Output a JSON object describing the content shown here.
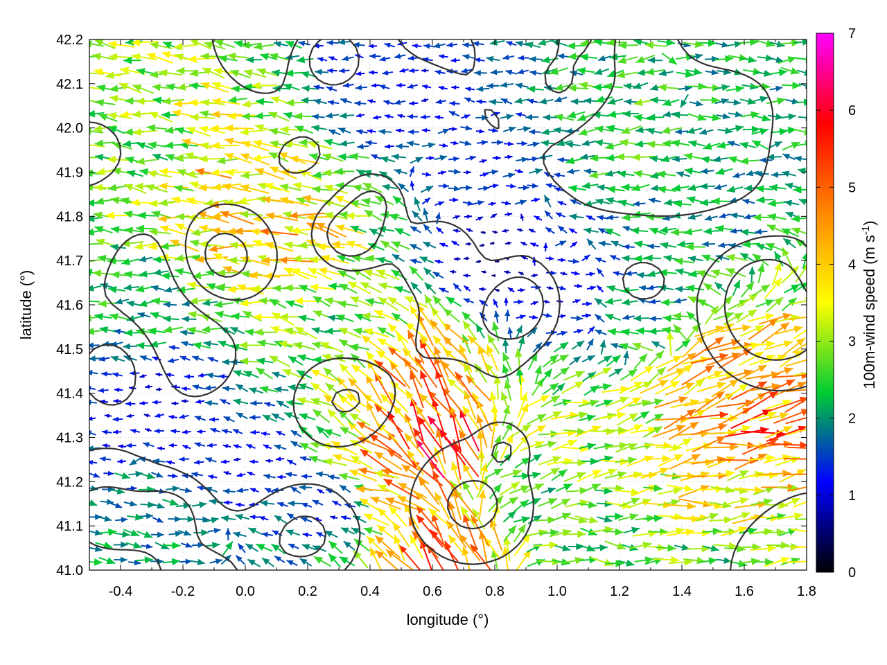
{
  "chart_data": {
    "type": "vector-field",
    "xlabel": "longitude (°)",
    "ylabel": "latitude (°)",
    "xlim": [
      -0.5,
      1.8
    ],
    "ylim": [
      41.0,
      42.2
    ],
    "x_ticks": [
      "-0.4",
      "-0.2",
      "0.0",
      "0.2",
      "0.4",
      "0.6",
      "0.8",
      "1.0",
      "1.2",
      "1.4",
      "1.6",
      "1.8"
    ],
    "y_ticks": [
      "41.0",
      "41.1",
      "41.2",
      "41.3",
      "41.4",
      "41.5",
      "41.6",
      "41.7",
      "41.8",
      "41.9",
      "42.0",
      "42.1",
      "42.2"
    ],
    "grid": true,
    "colorbar": {
      "label_main": "100m-wind speed (m s",
      "label_sup": "-1",
      "label_end": ")",
      "range": [
        0,
        7
      ],
      "ticks": [
        "0",
        "1",
        "2",
        "3",
        "4",
        "5",
        "6",
        "7"
      ],
      "stops": [
        "#000000",
        "#0000ff",
        "#00cc33",
        "#ffff00",
        "#ff8800",
        "#ff0000",
        "#ff00ff"
      ]
    },
    "contour_color": "#333333",
    "wind_regions": [
      {
        "lon": -0.3,
        "lat": 41.9,
        "u": -2.8,
        "v": 0.3,
        "speed": 2.8
      },
      {
        "lon": -0.1,
        "lat": 41.85,
        "u": -4.0,
        "v": 0.5,
        "speed": 4.0
      },
      {
        "lon": 0.1,
        "lat": 41.75,
        "u": -4.0,
        "v": 0.5,
        "speed": 4.0
      },
      {
        "lon": -0.35,
        "lat": 41.6,
        "u": -2.2,
        "v": 0.0,
        "speed": 2.2
      },
      {
        "lon": -0.3,
        "lat": 41.38,
        "u": -1.0,
        "v": 0.0,
        "speed": 1.0
      },
      {
        "lon": 0.0,
        "lat": 41.25,
        "u": -1.2,
        "v": 0.1,
        "speed": 1.2
      },
      {
        "lon": -0.3,
        "lat": 41.1,
        "u": 1.8,
        "v": -0.3,
        "speed": 1.9
      },
      {
        "lon": 0.3,
        "lat": 41.15,
        "u": -1.0,
        "v": 0.2,
        "speed": 1.0
      },
      {
        "lon": 0.3,
        "lat": 41.55,
        "u": -2.5,
        "v": 0.6,
        "speed": 2.6
      },
      {
        "lon": 0.55,
        "lat": 41.45,
        "u": -2.5,
        "v": 3.5,
        "speed": 4.6
      },
      {
        "lon": 0.6,
        "lat": 41.3,
        "u": -1.5,
        "v": 3.5,
        "speed": 5.5
      },
      {
        "lon": 0.6,
        "lat": 41.05,
        "u": -2.0,
        "v": 3.0,
        "speed": 4.8
      },
      {
        "lon": 0.45,
        "lat": 41.2,
        "u": -3.0,
        "v": 1.0,
        "speed": 4.5
      },
      {
        "lon": 0.8,
        "lat": 41.7,
        "u": -0.6,
        "v": 0.0,
        "speed": 0.6
      },
      {
        "lon": 1.0,
        "lat": 41.62,
        "u": 1.0,
        "v": 0.0,
        "speed": 1.1
      },
      {
        "lon": 0.75,
        "lat": 41.9,
        "u": 1.2,
        "v": 0.0,
        "speed": 1.3
      },
      {
        "lon": 0.5,
        "lat": 42.1,
        "u": -1.0,
        "v": 0.0,
        "speed": 1.2
      },
      {
        "lon": 1.2,
        "lat": 42.0,
        "u": -2.5,
        "v": -0.2,
        "speed": 2.5
      },
      {
        "lon": 1.5,
        "lat": 41.85,
        "u": -2.0,
        "v": 0.0,
        "speed": 2.0
      },
      {
        "lon": 1.6,
        "lat": 42.1,
        "u": 2.0,
        "v": 0.0,
        "speed": 2.2
      },
      {
        "lon": 1.3,
        "lat": 41.6,
        "u": -2.0,
        "v": 0.0,
        "speed": 2.0
      },
      {
        "lon": 1.55,
        "lat": 41.45,
        "u": 3.5,
        "v": 1.5,
        "speed": 4.2
      },
      {
        "lon": 1.6,
        "lat": 41.3,
        "u": 4.0,
        "v": 0.8,
        "speed": 4.8
      },
      {
        "lon": 1.5,
        "lat": 41.15,
        "u": 3.5,
        "v": 0.3,
        "speed": 3.7
      },
      {
        "lon": 1.5,
        "lat": 41.03,
        "u": 2.5,
        "v": 0.0,
        "speed": 2.4
      },
      {
        "lon": 1.1,
        "lat": 41.3,
        "u": 2.5,
        "v": 0.5,
        "speed": 3.0
      },
      {
        "lon": 0.9,
        "lat": 41.2,
        "u": 1.5,
        "v": 0.5,
        "speed": 2.5
      },
      {
        "lon": 1.1,
        "lat": 41.05,
        "u": 1.5,
        "v": -0.2,
        "speed": 2.6
      }
    ]
  }
}
